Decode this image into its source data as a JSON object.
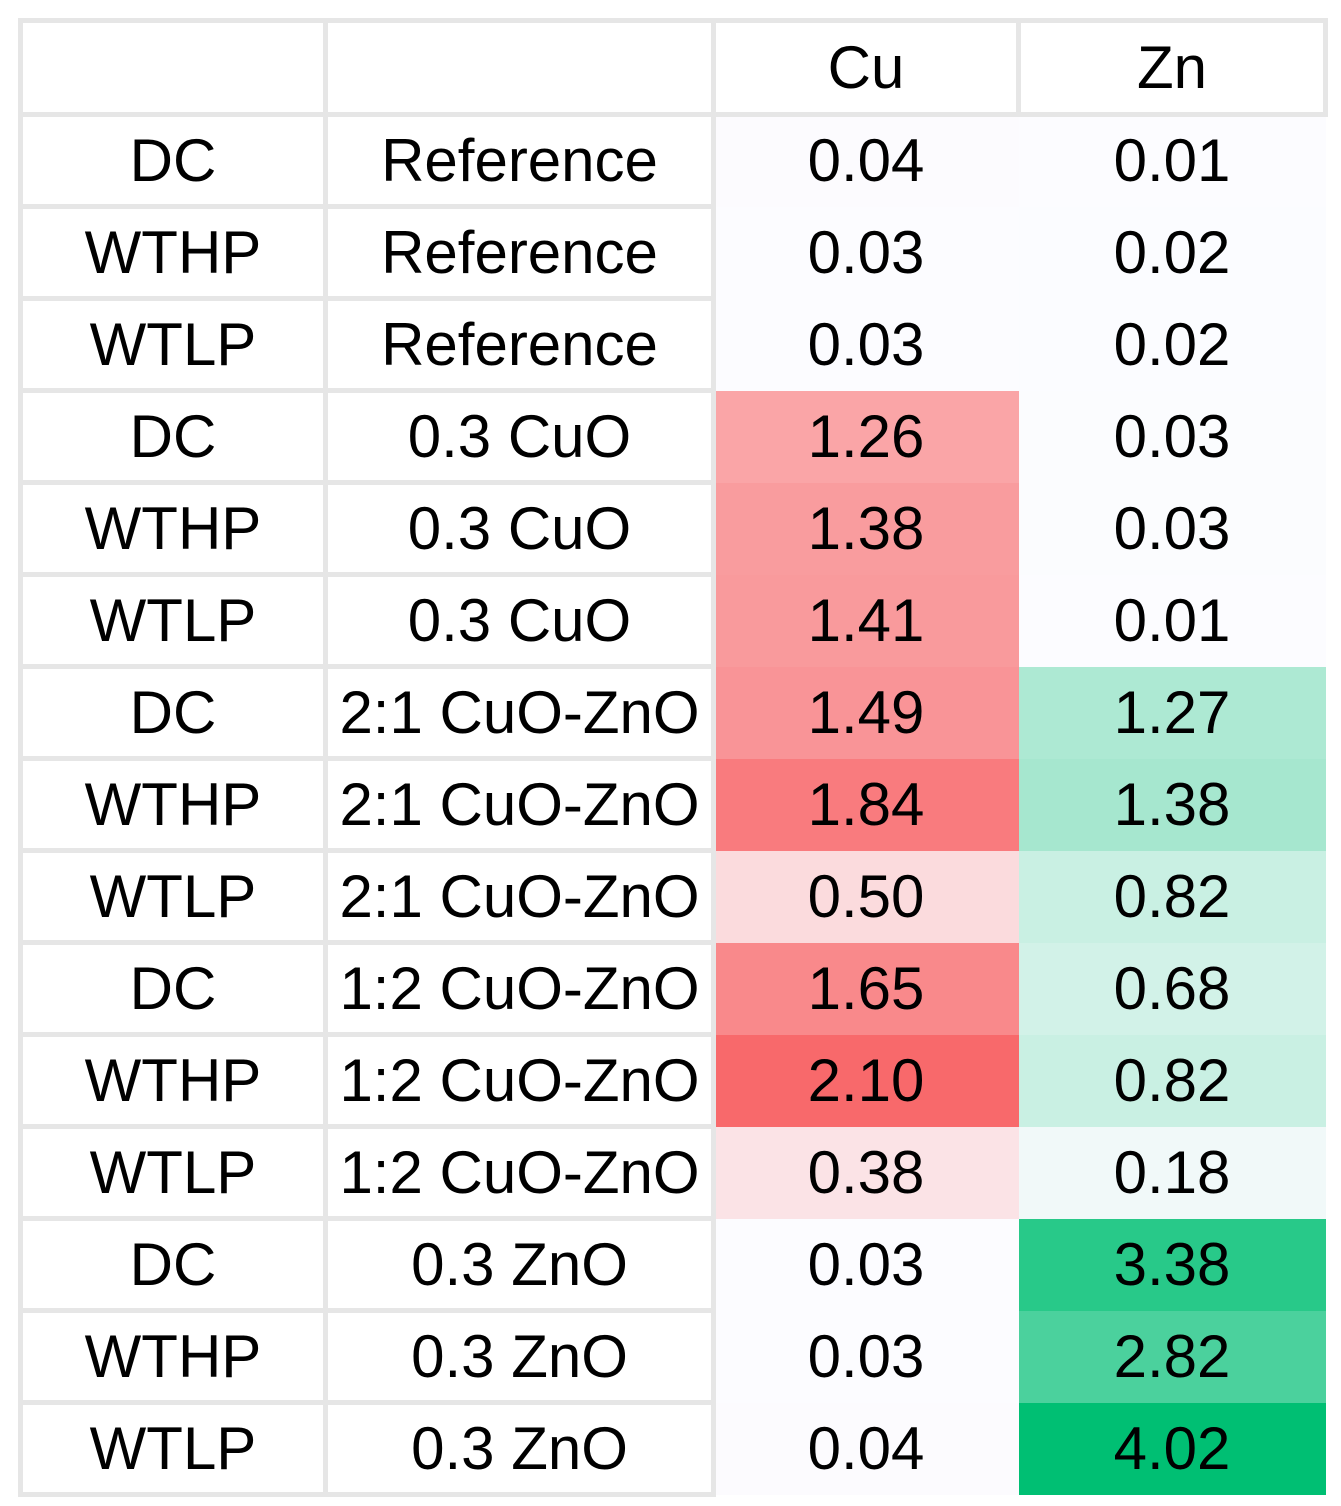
{
  "chart_data": {
    "type": "heatmap",
    "columns": [
      "",
      "",
      "Cu",
      "Zn"
    ],
    "value_columns": [
      "Cu",
      "Zn"
    ],
    "rows": [
      {
        "system": "DC",
        "treatment": "Reference",
        "values": [
          "0.04",
          "0.01"
        ]
      },
      {
        "system": "WTHP",
        "treatment": "Reference",
        "values": [
          "0.03",
          "0.02"
        ]
      },
      {
        "system": "WTLP",
        "treatment": "Reference",
        "values": [
          "0.03",
          "0.02"
        ]
      },
      {
        "system": "DC",
        "treatment": "0.3 CuO",
        "values": [
          "1.26",
          "0.03"
        ]
      },
      {
        "system": "WTHP",
        "treatment": "0.3 CuO",
        "values": [
          "1.38",
          "0.03"
        ]
      },
      {
        "system": "WTLP",
        "treatment": "0.3 CuO",
        "values": [
          "1.41",
          "0.01"
        ]
      },
      {
        "system": "DC",
        "treatment": "2:1 CuO-ZnO",
        "values": [
          "1.49",
          "1.27"
        ]
      },
      {
        "system": "WTHP",
        "treatment": "2:1 CuO-ZnO",
        "values": [
          "1.84",
          "1.38"
        ]
      },
      {
        "system": "WTLP",
        "treatment": "2:1 CuO-ZnO",
        "values": [
          "0.50",
          "0.82"
        ]
      },
      {
        "system": "DC",
        "treatment": "1:2 CuO-ZnO",
        "values": [
          "1.65",
          "0.68"
        ]
      },
      {
        "system": "WTHP",
        "treatment": "1:2 CuO-ZnO",
        "values": [
          "2.10",
          "0.82"
        ]
      },
      {
        "system": "WTLP",
        "treatment": "1:2 CuO-ZnO",
        "values": [
          "0.38",
          "0.18"
        ]
      },
      {
        "system": "DC",
        "treatment": "0.3 ZnO",
        "values": [
          "0.03",
          "3.38"
        ]
      },
      {
        "system": "WTHP",
        "treatment": "0.3 ZnO",
        "values": [
          "0.03",
          "2.82"
        ]
      },
      {
        "system": "WTLP",
        "treatment": "0.3 ZnO",
        "values": [
          "0.04",
          "4.02"
        ]
      }
    ],
    "color_scales": {
      "Cu": {
        "min_color": "#fcfcff",
        "max_color": "#f8696b"
      },
      "Zn": {
        "min_color": "#fcfcff",
        "max_color": "#00bf73"
      }
    }
  }
}
